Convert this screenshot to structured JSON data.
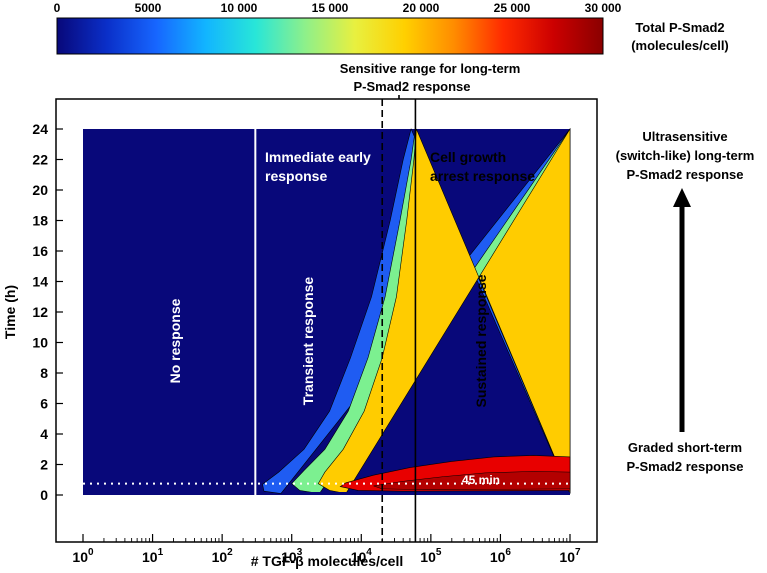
{
  "colorbar": {
    "ticks": [
      "0",
      "5000",
      "10 000",
      "15 000",
      "20 000",
      "25 000",
      "30 000"
    ],
    "tick_values": [
      0,
      5000,
      10000,
      15000,
      20000,
      25000,
      30000
    ],
    "label_line1": "Total P-Smad2",
    "label_line2": "(molecules/cell)",
    "colormap": [
      "#08087a",
      "#0a2fc8",
      "#1766ff",
      "#12b5ff",
      "#28e6d8",
      "#8ef08a",
      "#e8f040",
      "#ffd000",
      "#ff8c00",
      "#ff2a00",
      "#cc0000",
      "#8a0000"
    ]
  },
  "annotations": {
    "sensitive_line1": "Sensitive range for long-term",
    "sensitive_line2": "P-Smad2 response",
    "ultra_line1": "Ultrasensitive",
    "ultra_line2": "(switch-like) long-term",
    "ultra_line3": "P-Smad2 response",
    "graded_line1": "Graded short-term",
    "graded_line2": "P-Smad2 response",
    "immediate_line1": "Immediate early",
    "immediate_line2": "response",
    "arrest_line1": "Cell growth",
    "arrest_line2": "arrest response",
    "no_response": "No response",
    "transient": "Transient response",
    "sustained": "Sustained response",
    "min45": "45 min"
  },
  "chart_data": {
    "type": "heatmap",
    "xlabel": "# TGF-β molecules/cell",
    "ylabel": "Time (h)",
    "x_scale": "log",
    "x_range": [
      1,
      10000000
    ],
    "y_range": [
      0,
      24
    ],
    "x_ticks": [
      {
        "base": "10",
        "exp": "0",
        "value": 1
      },
      {
        "base": "10",
        "exp": "1",
        "value": 10
      },
      {
        "base": "10",
        "exp": "2",
        "value": 100
      },
      {
        "base": "10",
        "exp": "3",
        "value": 1000
      },
      {
        "base": "10",
        "exp": "4",
        "value": 10000
      },
      {
        "base": "10",
        "exp": "5",
        "value": 100000
      },
      {
        "base": "10",
        "exp": "6",
        "value": 1000000
      },
      {
        "base": "10",
        "exp": "7",
        "value": 10000000
      }
    ],
    "y_ticks": [
      "0",
      "2",
      "4",
      "6",
      "8",
      "10",
      "12",
      "14",
      "16",
      "18",
      "20",
      "22",
      "24"
    ],
    "region_boundaries_molecules_per_cell": [
      300,
      60000
    ],
    "sensitive_range_line_molecules_per_cell": 20000,
    "time_line_h": 0.75,
    "colors": {
      "background": "#08087a",
      "band1": "#1f5cf2",
      "band2": "#7cf090",
      "sustained": "#ffcc00",
      "peak": "#e80000",
      "peak_core": "#b30000"
    }
  }
}
